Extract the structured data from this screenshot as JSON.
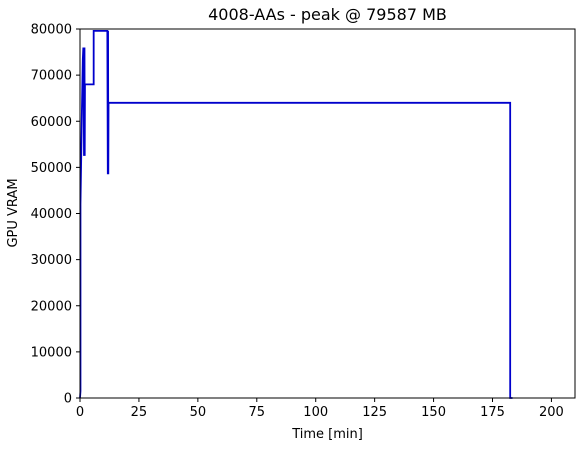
{
  "chart_data": {
    "type": "line",
    "title": "4008-AAs - peak @ 79587 MB",
    "xlabel": "Time [min]",
    "ylabel": "GPU VRAM",
    "xlim": [
      0,
      210
    ],
    "ylim": [
      0,
      80000
    ],
    "xticks": [
      0,
      25,
      50,
      75,
      100,
      125,
      150,
      175,
      200
    ],
    "yticks": [
      0,
      10000,
      20000,
      30000,
      40000,
      50000,
      60000,
      70000,
      80000
    ],
    "grid": false,
    "series": [
      {
        "color": "#0000cc",
        "x": [
          0,
          0.2,
          0.2,
          0.5,
          0.8,
          1.0,
          1.2,
          1.4,
          1.5,
          1.7,
          1.8,
          1.9,
          2.0,
          2.1,
          2.2,
          2.4,
          2.6,
          5.8,
          5.8,
          6.0,
          6.3,
          6.5,
          11.5,
          11.6,
          11.7,
          11.8,
          11.9,
          12.0,
          12.1,
          12.2,
          12.3,
          12.4,
          12.5,
          182.5,
          182.5,
          183.5
        ],
        "y": [
          0,
          1500,
          42000,
          52000,
          62000,
          68000,
          73500,
          75800,
          75800,
          52500,
          75800,
          75800,
          52500,
          68000,
          68000,
          68000,
          68000,
          68000,
          79587,
          79587,
          79587,
          79587,
          79587,
          79587,
          64000,
          48500,
          79587,
          48500,
          64000,
          64000,
          64000,
          64000,
          64000,
          64000,
          0,
          0
        ]
      }
    ]
  }
}
